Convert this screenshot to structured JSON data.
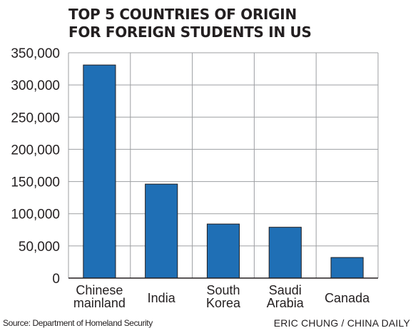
{
  "chart_data": {
    "type": "bar",
    "title": [
      "TOP 5 COUNTRIES OF ORIGIN",
      "FOR FOREIGN STUDENTS IN US"
    ],
    "categories": [
      [
        "Chinese",
        "mainland"
      ],
      [
        "India"
      ],
      [
        "South",
        "Korea"
      ],
      [
        "Saudi",
        "Arabia"
      ],
      [
        "Canada"
      ]
    ],
    "values": [
      331000,
      146000,
      84000,
      79000,
      32000
    ],
    "ylim": [
      0,
      350000
    ],
    "yticks": [
      "0",
      "50,000",
      "100,000",
      "150,000",
      "200,000",
      "250,000",
      "300,000",
      "350,000"
    ],
    "ytick_values": [
      0,
      50000,
      100000,
      150000,
      200000,
      250000,
      300000,
      350000
    ],
    "grid": true,
    "bar_color": "#1f6fb5",
    "bar_edge_color": "#231f20"
  },
  "footer": {
    "source": "Source: Department of Homeland Security",
    "credit": "ERIC CHUNG / CHINA DAILY"
  }
}
